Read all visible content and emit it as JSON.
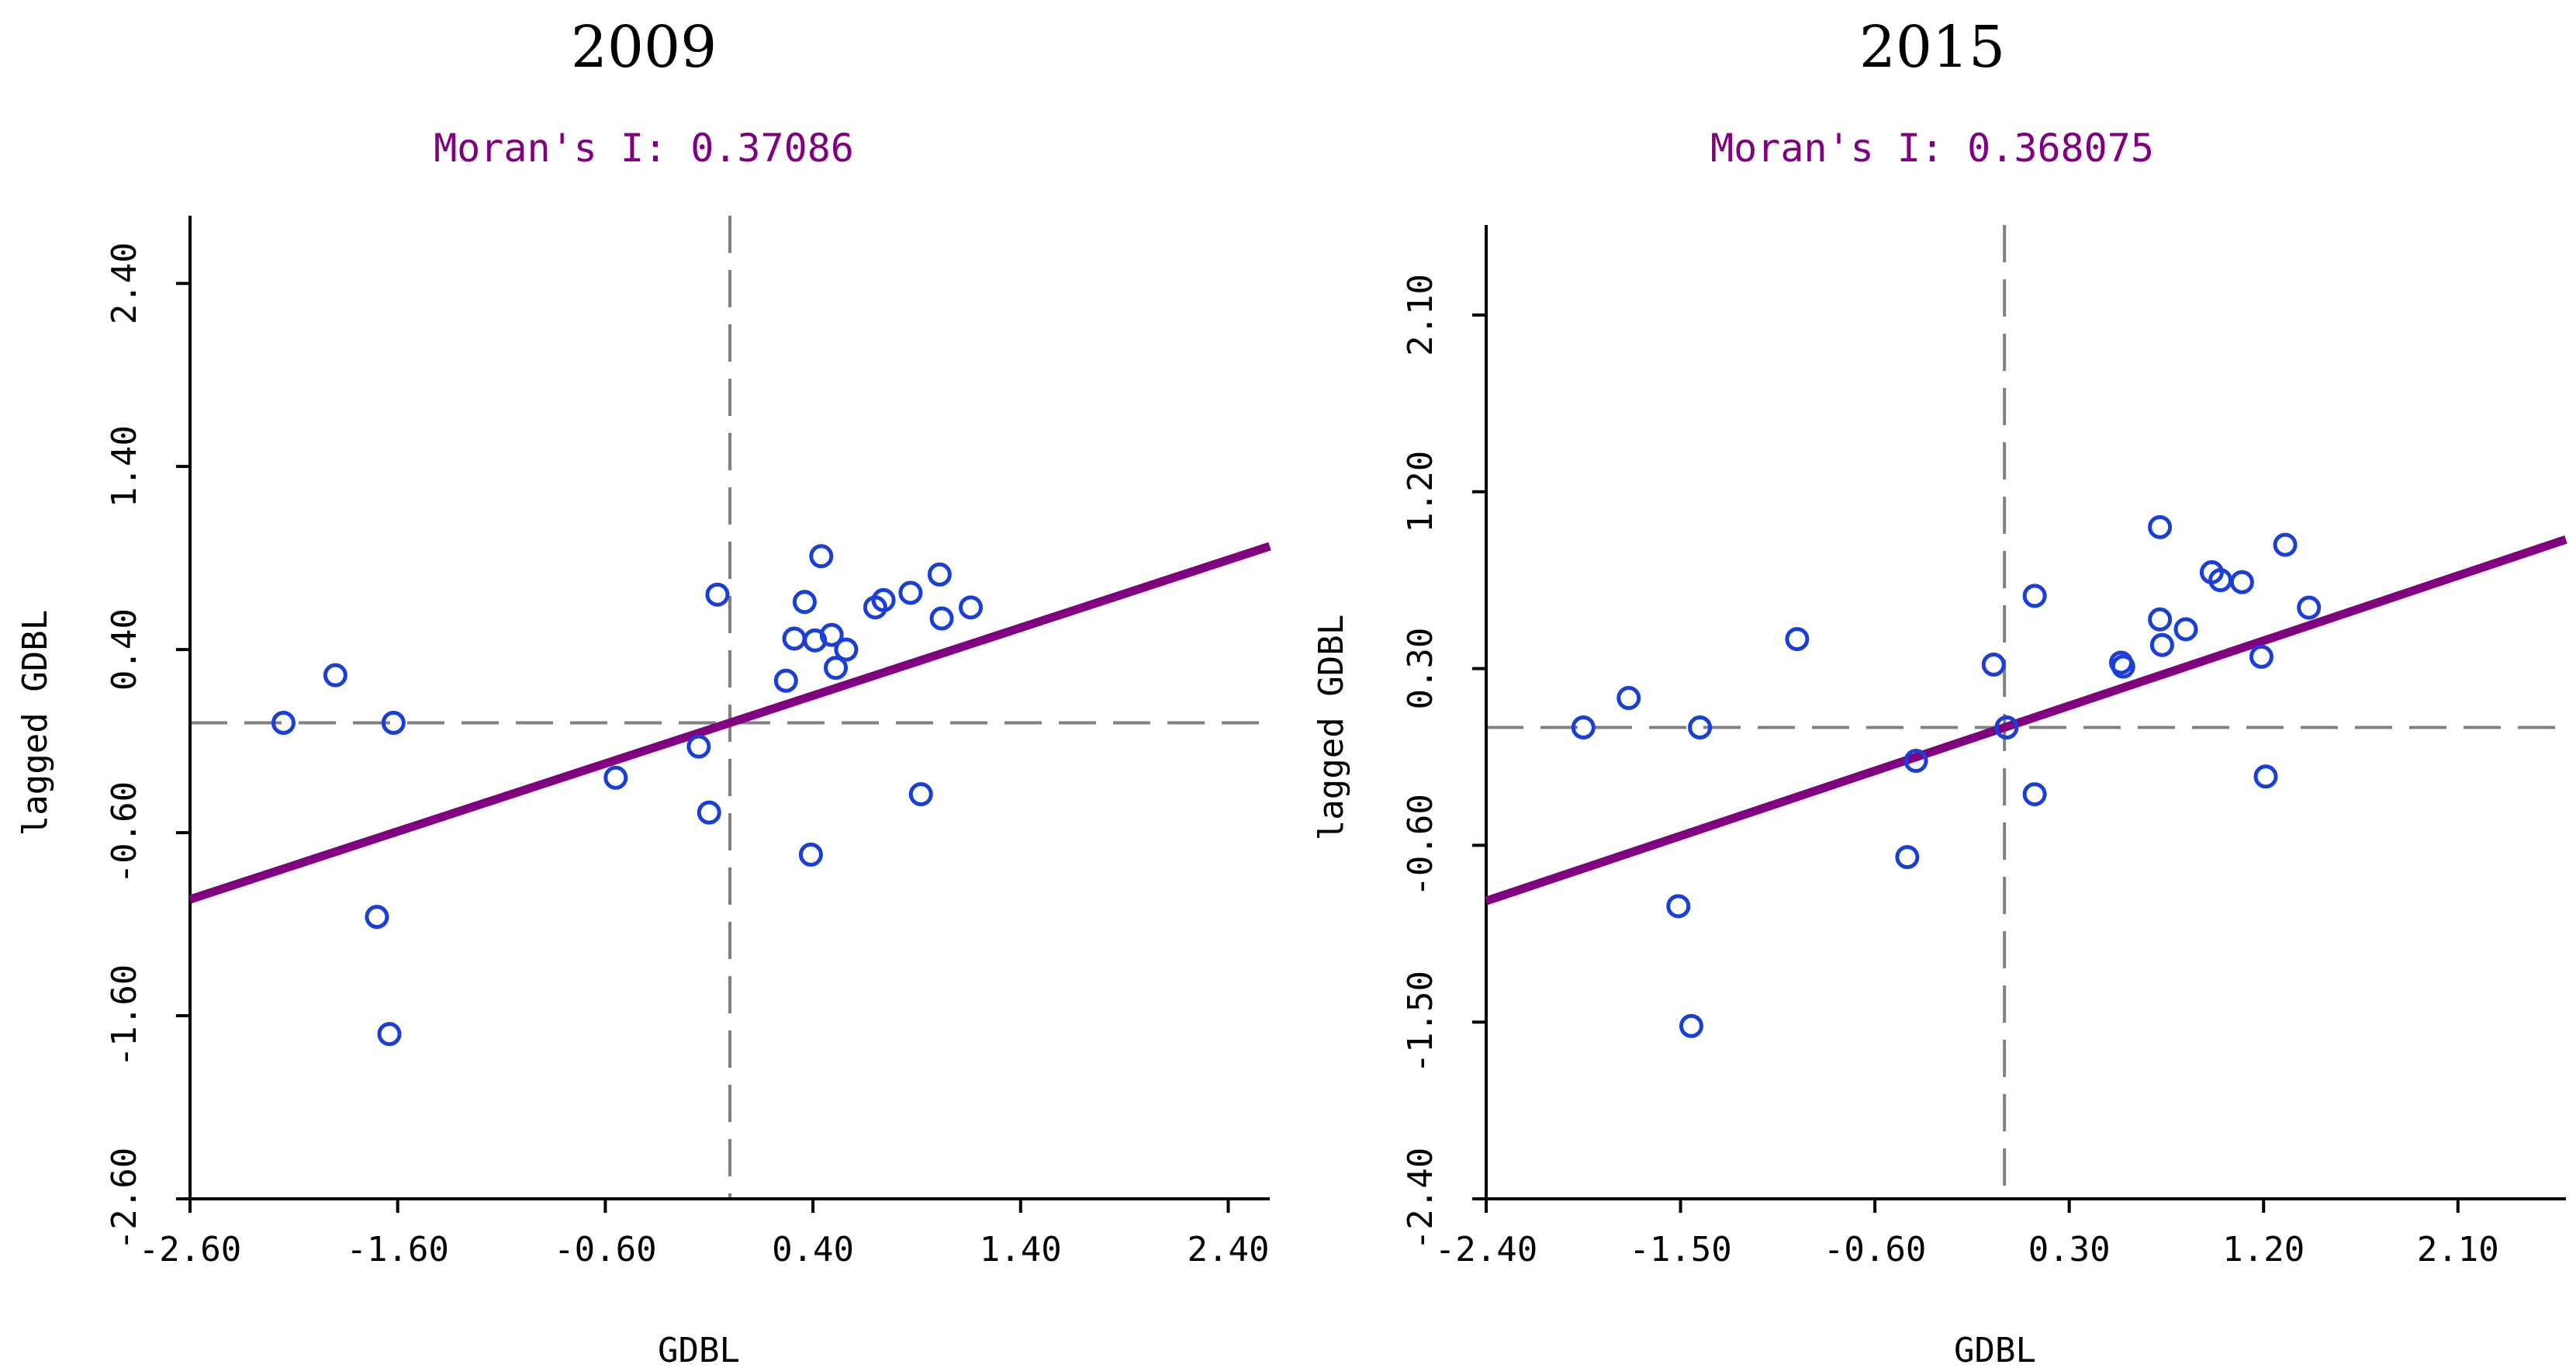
{
  "colors": {
    "regression": "#800080",
    "points": "#1a3fd6",
    "axis": "#000000",
    "guides": "#808080",
    "moran": "#800080"
  },
  "chart_data": [
    {
      "type": "scatter",
      "title": "2009",
      "subtitle": "Moran's I: 0.37086",
      "xlabel": "GDBL",
      "ylabel": "lagged GDBL",
      "xlim": [
        -2.6,
        2.6
      ],
      "ylim": [
        -2.6,
        2.6
      ],
      "xticks": [
        -2.6,
        -1.6,
        -0.6,
        0.4,
        1.4,
        2.4
      ],
      "xtick_labels": [
        "-2.60",
        "-1.60",
        "-0.60",
        "0.40",
        "1.40",
        "2.40"
      ],
      "yticks": [
        -2.6,
        -1.6,
        -0.6,
        0.4,
        1.4,
        2.4
      ],
      "ytick_labels": [
        "-2.60",
        "-1.60",
        "-0.60",
        "0.40",
        "1.40",
        "2.40"
      ],
      "regression": {
        "slope": 0.37086,
        "intercept": 0.0
      },
      "points": [
        {
          "x": -2.15,
          "y": 0.0
        },
        {
          "x": -1.9,
          "y": 0.26
        },
        {
          "x": -1.62,
          "y": 0.0
        },
        {
          "x": -1.7,
          "y": -1.06
        },
        {
          "x": -1.64,
          "y": -1.7
        },
        {
          "x": -0.55,
          "y": -0.3
        },
        {
          "x": -0.15,
          "y": -0.13
        },
        {
          "x": -0.1,
          "y": -0.49
        },
        {
          "x": -0.06,
          "y": 0.7
        },
        {
          "x": 0.27,
          "y": 0.23
        },
        {
          "x": 0.31,
          "y": 0.46
        },
        {
          "x": 0.36,
          "y": 0.66
        },
        {
          "x": 0.39,
          "y": -0.72
        },
        {
          "x": 0.41,
          "y": 0.45
        },
        {
          "x": 0.44,
          "y": 0.91
        },
        {
          "x": 0.49,
          "y": 0.48
        },
        {
          "x": 0.51,
          "y": 0.3
        },
        {
          "x": 0.56,
          "y": 0.4
        },
        {
          "x": 0.7,
          "y": 0.63
        },
        {
          "x": 0.74,
          "y": 0.67
        },
        {
          "x": 0.87,
          "y": 0.71
        },
        {
          "x": 0.92,
          "y": -0.39
        },
        {
          "x": 1.01,
          "y": 0.81
        },
        {
          "x": 1.02,
          "y": 0.57
        },
        {
          "x": 1.16,
          "y": 0.63
        }
      ]
    },
    {
      "type": "scatter",
      "title": "2015",
      "subtitle": "Moran's I: 0.368075",
      "xlabel": "GDBL",
      "ylabel": "lagged GDBL",
      "xlim": [
        -2.4,
        2.6
      ],
      "ylim": [
        -2.4,
        2.4
      ],
      "xticks": [
        -2.4,
        -1.5,
        -0.6,
        0.3,
        1.2,
        2.1
      ],
      "xtick_labels": [
        "-2.40",
        "-1.50",
        "-0.60",
        "0.30",
        "1.20",
        "2.10"
      ],
      "yticks": [
        -2.4,
        -1.5,
        -0.6,
        0.3,
        1.2,
        2.1
      ],
      "ytick_labels": [
        "-2.40",
        "-1.50",
        "-0.60",
        "0.30",
        "1.20",
        "2.10"
      ],
      "regression": {
        "slope": 0.368075,
        "intercept": 0.0
      },
      "points": [
        {
          "x": -1.95,
          "y": 0.0
        },
        {
          "x": -1.74,
          "y": 0.15
        },
        {
          "x": -1.51,
          "y": -0.91
        },
        {
          "x": -1.45,
          "y": -1.52
        },
        {
          "x": -1.41,
          "y": 0.0
        },
        {
          "x": -0.96,
          "y": 0.45
        },
        {
          "x": -0.45,
          "y": -0.66
        },
        {
          "x": -0.41,
          "y": -0.17
        },
        {
          "x": -0.05,
          "y": 0.32
        },
        {
          "x": 0.01,
          "y": 0.0
        },
        {
          "x": 0.14,
          "y": -0.34
        },
        {
          "x": 0.14,
          "y": 0.67
        },
        {
          "x": 0.54,
          "y": 0.33
        },
        {
          "x": 0.55,
          "y": 0.31
        },
        {
          "x": 0.72,
          "y": 0.55
        },
        {
          "x": 0.73,
          "y": 0.42
        },
        {
          "x": 0.72,
          "y": 1.02
        },
        {
          "x": 0.84,
          "y": 0.5
        },
        {
          "x": 0.96,
          "y": 0.79
        },
        {
          "x": 1.0,
          "y": 0.75
        },
        {
          "x": 1.1,
          "y": 0.74
        },
        {
          "x": 1.19,
          "y": 0.36
        },
        {
          "x": 1.21,
          "y": -0.25
        },
        {
          "x": 1.3,
          "y": 0.93
        },
        {
          "x": 1.41,
          "y": 0.61
        }
      ]
    }
  ]
}
